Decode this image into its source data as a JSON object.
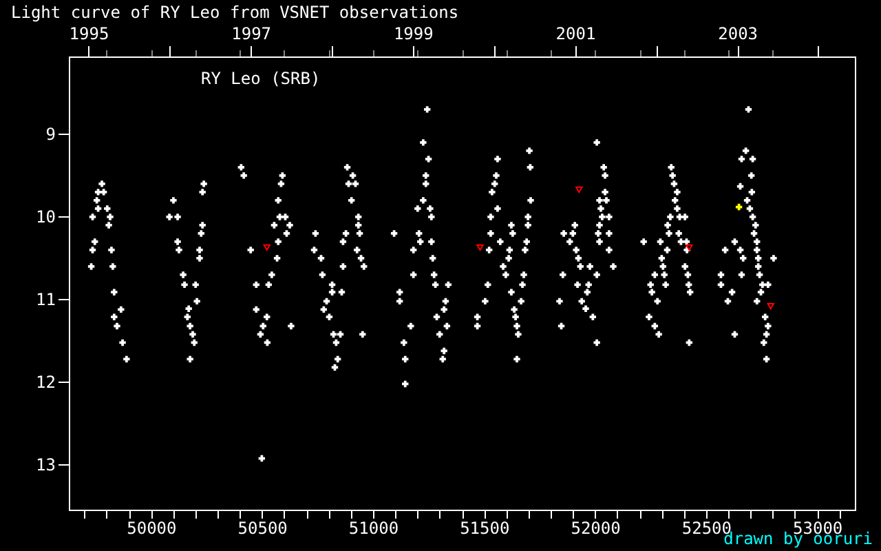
{
  "chart_data": {
    "type": "scatter",
    "title": "Light curve of RY Leo from VSNET observations",
    "annotations": [
      "RY Leo (SRB)",
      "drawn by ooruri"
    ],
    "xlim": [
      49630,
      53170
    ],
    "ylim": [
      13.55,
      8.07
    ],
    "xticks": [
      {
        "value": 49700,
        "label": null
      },
      {
        "value": 49800,
        "label": null
      },
      {
        "value": 49900,
        "label": null
      },
      50000,
      {
        "value": 50100,
        "label": null
      },
      {
        "value": 50200,
        "label": null
      },
      {
        "value": 50300,
        "label": null
      },
      {
        "value": 50400,
        "label": null
      },
      50500,
      {
        "value": 50600,
        "label": null
      },
      {
        "value": 50700,
        "label": null
      },
      {
        "value": 50800,
        "label": null
      },
      {
        "value": 50900,
        "label": null
      },
      51000,
      {
        "value": 51100,
        "label": null
      },
      {
        "value": 51200,
        "label": null
      },
      {
        "value": 51300,
        "label": null
      },
      {
        "value": 51400,
        "label": null
      },
      51500,
      {
        "value": 51600,
        "label": null
      },
      {
        "value": 51700,
        "label": null
      },
      {
        "value": 51800,
        "label": null
      },
      {
        "value": 51900,
        "label": null
      },
      52000,
      {
        "value": 52100,
        "label": null
      },
      {
        "value": 52200,
        "label": null
      },
      {
        "value": 52300,
        "label": null
      },
      {
        "value": 52400,
        "label": null
      },
      52500,
      {
        "value": 52600,
        "label": null
      },
      {
        "value": 52700,
        "label": null
      },
      {
        "value": 52800,
        "label": null
      },
      {
        "value": 52900,
        "label": null
      },
      53000,
      {
        "value": 53100,
        "label": null
      }
    ],
    "x2lim": [
      1994.758,
      2004.45
    ],
    "x2ticks": [
      1995,
      {
        "value": 1996,
        "label": null
      },
      1997,
      {
        "value": 1998,
        "label": null
      },
      1999,
      {
        "value": 2000,
        "label": null
      },
      2001,
      {
        "value": 2002,
        "label": null
      },
      2003,
      {
        "value": 2004,
        "label": null
      }
    ],
    "yticks": [
      9,
      10,
      11,
      12,
      13
    ],
    "grid": false,
    "series": [
      {
        "color": "#ffffff",
        "marker": "cross",
        "x": [
          49731,
          49737,
          49747,
          49737,
          49756,
          49762,
          49762,
          49779,
          49787,
          49803,
          49810,
          49816,
          49822,
          49828,
          49834,
          49834,
          49847,
          49865,
          49872,
          49890,
          50083,
          50101,
          50120,
          50120,
          50126,
          50145,
          50151,
          50164,
          50170,
          50176,
          50188,
          50195,
          50176,
          50201,
          50207,
          50219,
          50219,
          50226,
          50232,
          50232,
          50238,
          50406,
          50418,
          50449,
          50474,
          50474,
          50493,
          50505,
          50522,
          50524,
          50499,
          50530,
          50544,
          50555,
          50568,
          50573,
          50573,
          50580,
          50586,
          50592,
          50605,
          50611,
          50625,
          50631,
          50735,
          50741,
          50766,
          50772,
          50778,
          50791,
          50803,
          50816,
          50816,
          50822,
          50834,
          50841,
          50828,
          50853,
          50859,
          50865,
          50865,
          50878,
          50884,
          50890,
          50903,
          50909,
          50921,
          50934,
          50934,
          50940,
          50928,
          50946,
          50959,
          50953,
          51095,
          51120,
          51120,
          51139,
          51145,
          51145,
          51170,
          51182,
          51182,
          51201,
          51207,
          51213,
          51226,
          51226,
          51238,
          51238,
          51244,
          51250,
          51257,
          51263,
          51263,
          51269,
          51275,
          51281,
          51287,
          51300,
          51314,
          51320,
          51327,
          51333,
          51320,
          51339,
          51470,
          51470,
          51505,
          51517,
          51523,
          51530,
          51536,
          51548,
          51555,
          51561,
          51561,
          51530,
          51573,
          51586,
          51598,
          51611,
          51615,
          51623,
          51629,
          51623,
          51636,
          51642,
          51648,
          51654,
          51648,
          51667,
          51673,
          51679,
          51685,
          51692,
          51698,
          51698,
          51710,
          51708,
          51704,
          51840,
          51848,
          51855,
          51859,
          51886,
          51900,
          51909,
          51915,
          51925,
          51921,
          51934,
          51940,
          51958,
          51965,
          51971,
          51977,
          51990,
          52008,
          52008,
          52008,
          52014,
          52020,
          52020,
          52020,
          52026,
          52032,
          52039,
          52045,
          52045,
          52051,
          52063,
          52063,
          52063,
          52082,
          52219,
          52243,
          52250,
          52256,
          52269,
          52269,
          52281,
          52287,
          52294,
          52300,
          52306,
          52312,
          52318,
          52325,
          52327,
          52333,
          52339,
          52343,
          52349,
          52356,
          52360,
          52370,
          52370,
          52377,
          52381,
          52387,
          52405,
          52405,
          52412,
          52414,
          52418,
          52422,
          52424,
          52428,
          52567,
          52567,
          52586,
          52598,
          52617,
          52629,
          52629,
          52654,
          52654,
          52660,
          52660,
          52667,
          52679,
          52685,
          52691,
          52697,
          52704,
          52706,
          52710,
          52710,
          52716,
          52723,
          52729,
          52729,
          52729,
          52735,
          52735,
          52741,
          52747,
          52754,
          52760,
          52766,
          52772,
          52772,
          52779,
          52779,
          52804
        ],
        "values": [
          10.61,
          10.41,
          10.31,
          10.01,
          9.81,
          9.91,
          9.71,
          9.61,
          9.71,
          9.91,
          10.11,
          10.01,
          10.41,
          10.61,
          10.92,
          11.22,
          11.33,
          11.13,
          11.53,
          11.73,
          10.01,
          9.81,
          10.01,
          10.31,
          10.41,
          10.71,
          10.83,
          11.22,
          11.12,
          11.33,
          11.43,
          11.53,
          11.73,
          10.83,
          11.03,
          10.41,
          10.51,
          10.21,
          10.11,
          9.71,
          9.61,
          9.41,
          9.51,
          10.41,
          10.83,
          11.13,
          11.43,
          11.33,
          11.22,
          11.53,
          12.93,
          10.83,
          10.71,
          10.11,
          10.51,
          10.31,
          9.81,
          10.01,
          9.61,
          9.51,
          10.01,
          10.21,
          10.11,
          11.33,
          10.41,
          10.21,
          10.51,
          10.71,
          11.13,
          11.03,
          11.22,
          10.83,
          10.92,
          11.43,
          11.53,
          11.73,
          11.83,
          11.43,
          10.92,
          10.61,
          10.31,
          10.21,
          9.41,
          9.61,
          9.81,
          9.51,
          9.61,
          10.01,
          10.11,
          10.21,
          10.41,
          10.51,
          10.61,
          11.43,
          10.21,
          10.92,
          11.03,
          11.53,
          11.73,
          12.03,
          11.33,
          10.41,
          10.71,
          9.91,
          10.21,
          10.31,
          9.81,
          9.11,
          9.51,
          9.61,
          8.71,
          9.31,
          9.91,
          10.01,
          10.31,
          10.51,
          10.71,
          10.83,
          11.22,
          11.43,
          11.73,
          11.13,
          11.03,
          11.33,
          11.63,
          10.83,
          11.33,
          11.22,
          11.03,
          10.83,
          10.41,
          10.01,
          9.71,
          9.61,
          9.51,
          9.31,
          9.91,
          10.21,
          10.31,
          10.61,
          10.71,
          10.51,
          10.41,
          10.11,
          10.21,
          10.92,
          11.13,
          11.22,
          11.33,
          11.43,
          11.73,
          11.03,
          10.83,
          10.71,
          10.41,
          10.31,
          10.11,
          10.01,
          9.81,
          9.41,
          9.21,
          11.03,
          11.33,
          10.71,
          10.21,
          10.31,
          10.21,
          10.11,
          10.41,
          10.51,
          10.83,
          10.61,
          11.03,
          11.12,
          10.92,
          10.83,
          10.61,
          11.22,
          9.11,
          10.71,
          11.53,
          10.21,
          10.31,
          10.11,
          9.81,
          9.91,
          10.01,
          9.41,
          9.51,
          9.71,
          9.81,
          10.01,
          10.21,
          10.41,
          10.61,
          10.31,
          11.22,
          10.83,
          10.92,
          10.71,
          11.33,
          11.03,
          11.43,
          10.31,
          10.51,
          10.61,
          10.71,
          10.83,
          10.41,
          10.11,
          10.21,
          10.01,
          9.41,
          9.51,
          9.61,
          9.81,
          9.71,
          9.91,
          10.21,
          10.01,
          10.31,
          10.01,
          10.61,
          10.31,
          10.41,
          10.71,
          10.83,
          11.53,
          10.92,
          10.71,
          10.83,
          10.41,
          11.03,
          10.92,
          10.31,
          11.43,
          9.64,
          10.41,
          9.31,
          10.71,
          10.51,
          9.21,
          9.81,
          8.71,
          9.91,
          9.51,
          9.71,
          9.31,
          10.01,
          10.21,
          10.11,
          10.31,
          10.41,
          11.03,
          10.61,
          10.51,
          10.71,
          10.92,
          10.83,
          11.53,
          11.22,
          11.43,
          11.73,
          11.33,
          10.83,
          10.51
        ]
      },
      {
        "color": "#ff0000",
        "marker": "triangle",
        "x": [
          50522,
          51482,
          51928,
          52424,
          52791
        ],
        "values": [
          10.38,
          10.38,
          9.68,
          10.38,
          11.09
        ]
      },
      {
        "color": "#ffff00",
        "marker": "cross",
        "x": [
          52648
        ],
        "values": [
          9.89
        ]
      }
    ]
  }
}
